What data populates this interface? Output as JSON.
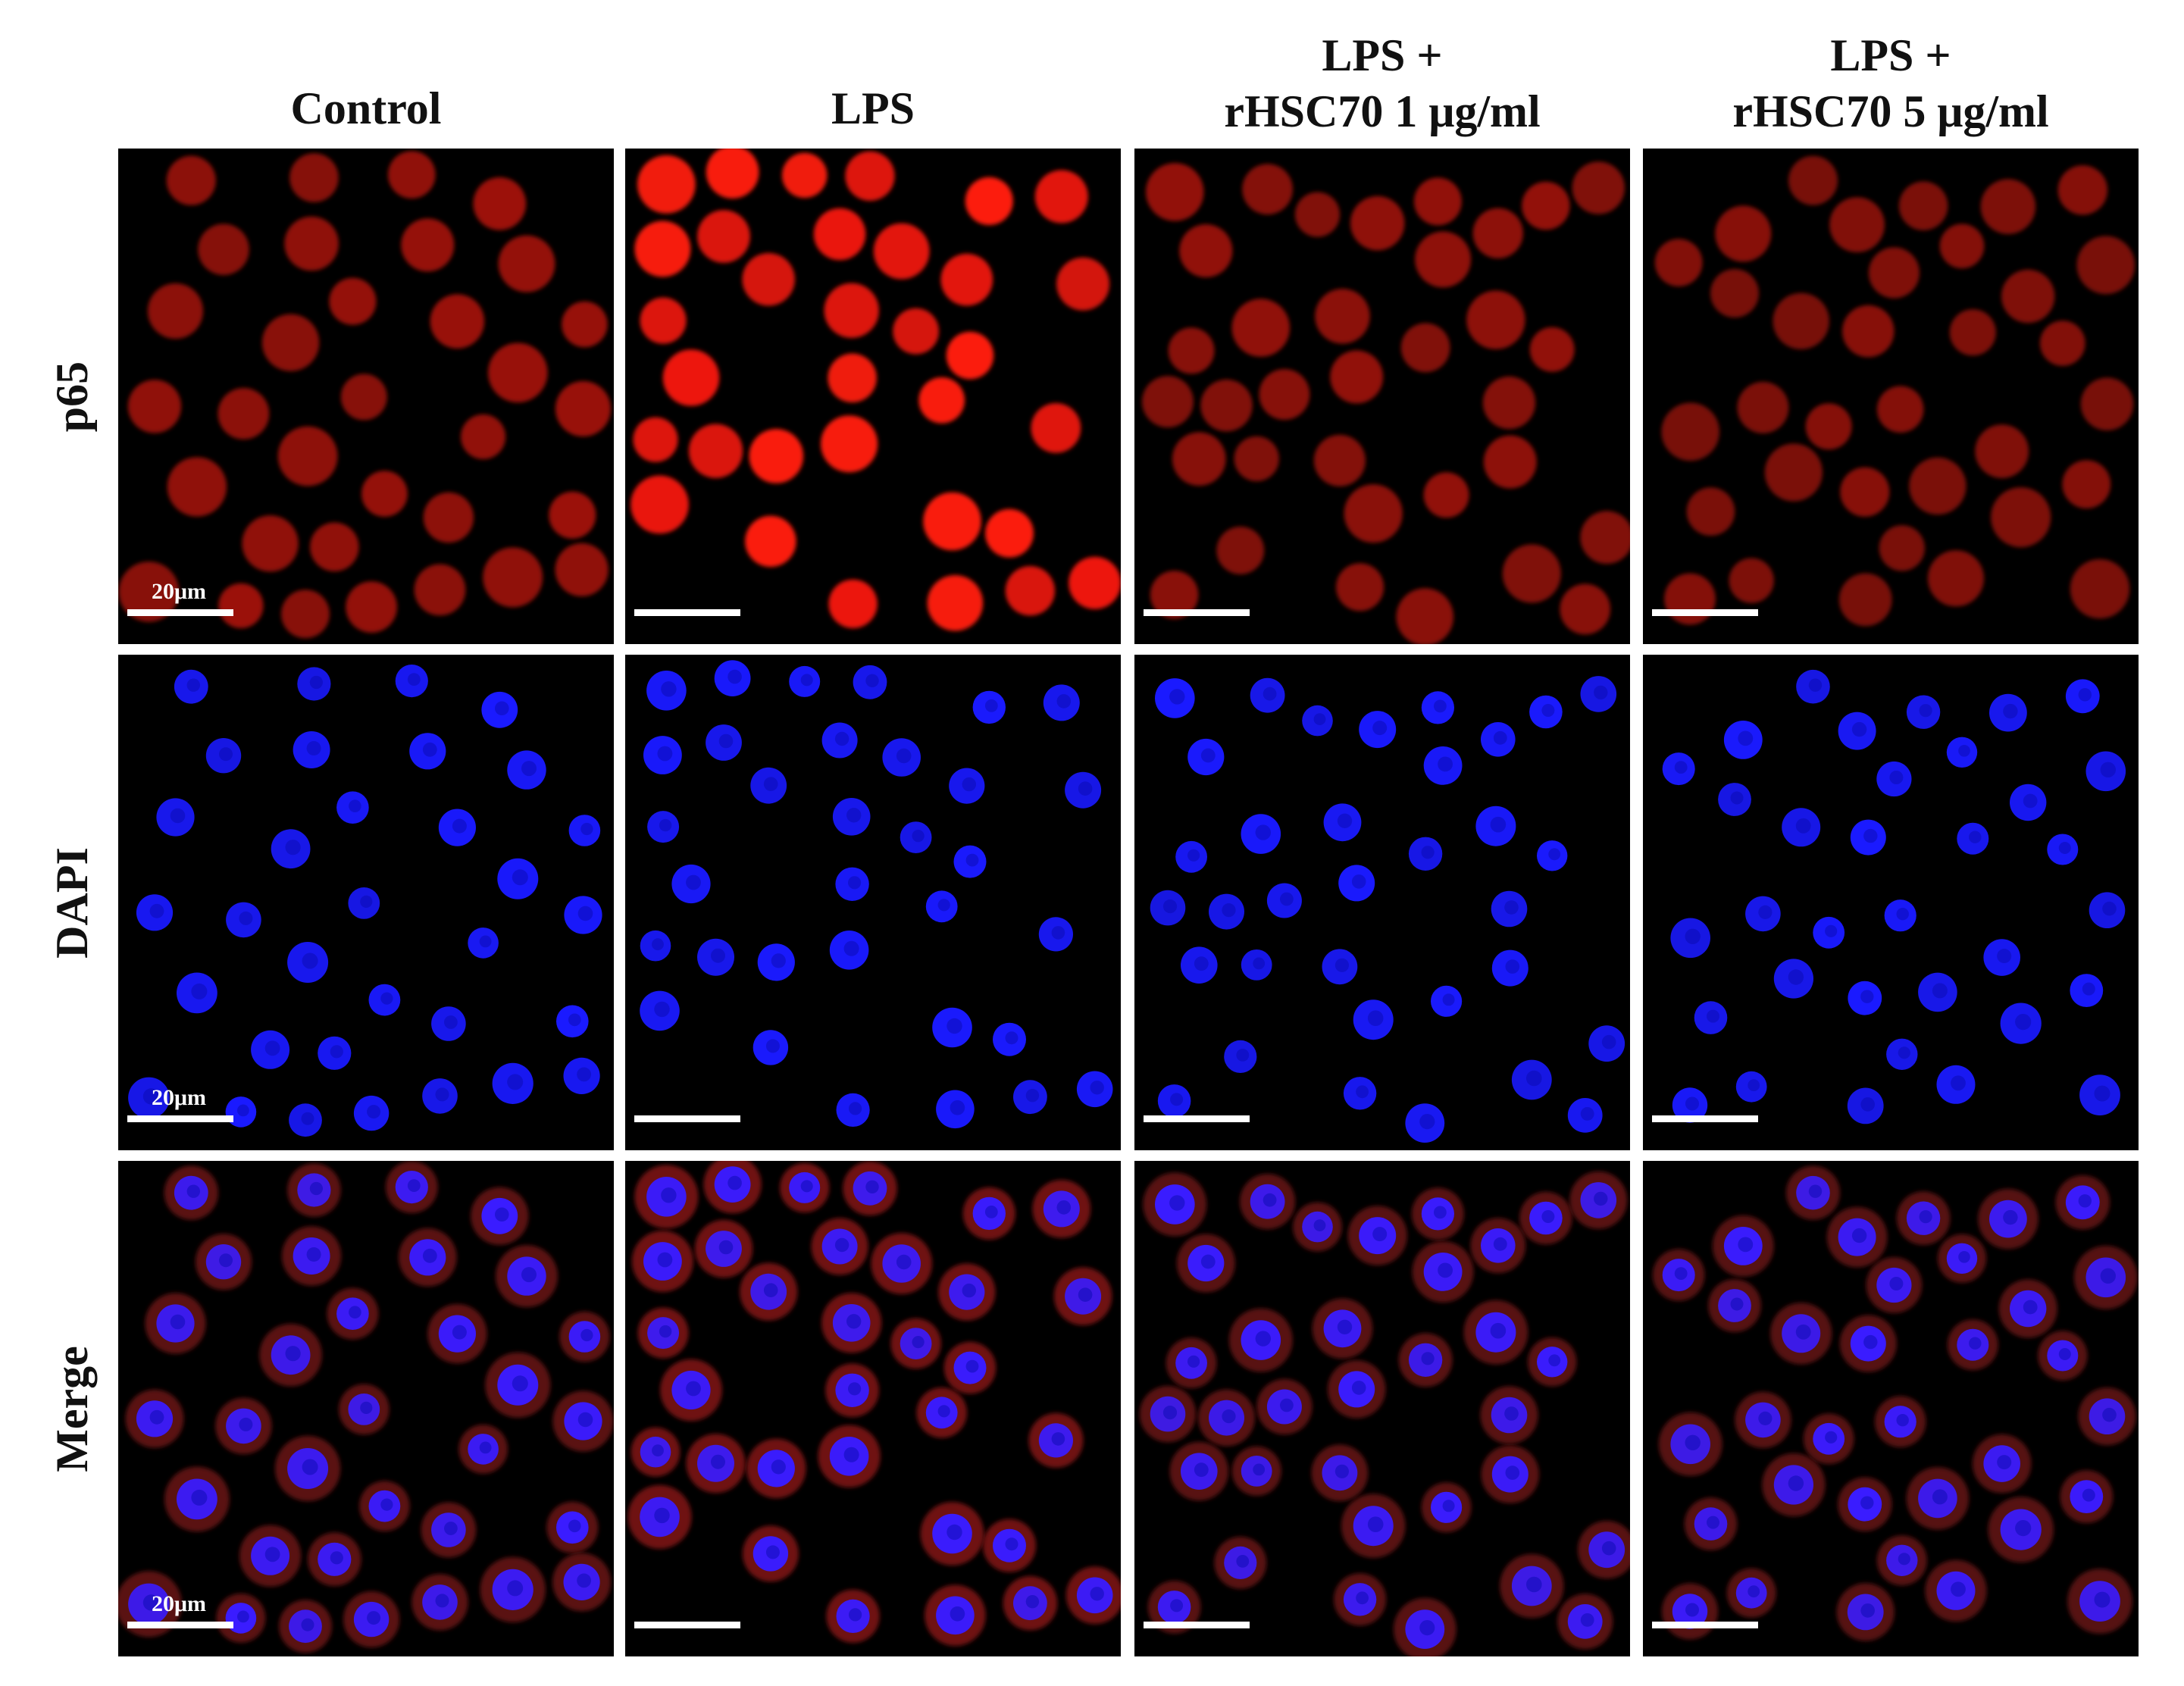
{
  "figure": {
    "columns": [
      {
        "id": "control",
        "lines": [
          "Control"
        ]
      },
      {
        "id": "lps",
        "lines": [
          "LPS"
        ]
      },
      {
        "id": "lps-rhsc70-1",
        "lines": [
          "LPS +",
          "rHSC70 1 μg/ml"
        ]
      },
      {
        "id": "lps-rhsc70-5",
        "lines": [
          "LPS +",
          "rHSC70 5 μg/ml"
        ]
      }
    ],
    "rows": [
      {
        "id": "p65",
        "label": "p65",
        "channel": "red"
      },
      {
        "id": "dapi",
        "label": "DAPI",
        "channel": "blue"
      },
      {
        "id": "merge",
        "label": "Merge",
        "channel": "merge"
      }
    ],
    "scale_bar_label": "20μm",
    "colors": {
      "p65_bright": "#ff1a10",
      "p65_dim": "#7a1610",
      "dapi": "#1a1aff",
      "merge_nucleus": "#3a1cff",
      "merge_cytoplasm": "#8a1a18",
      "panel_background": "#000000"
    },
    "p65_intensity_by_column": [
      0.55,
      1.0,
      0.5,
      0.45
    ]
  }
}
